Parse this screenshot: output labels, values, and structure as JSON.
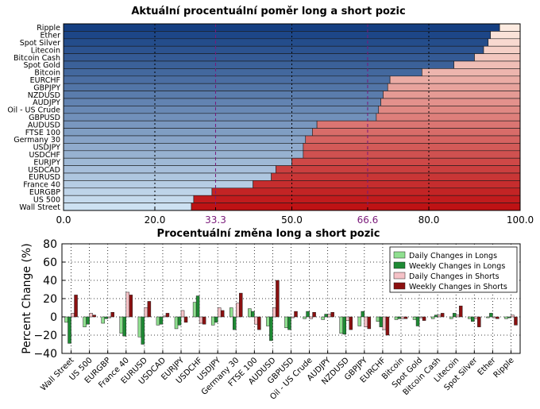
{
  "chart_data": [
    {
      "type": "bar",
      "orientation": "horizontal",
      "stacked": true,
      "title": "Aktuální procentuální poměr long a short pozic",
      "categories": [
        "Ripple",
        "Ether",
        "Spot Silver",
        "Litecoin",
        "Bitcoin Cash",
        "Spot Gold",
        "Bitcoin",
        "EURCHF",
        "GBPJPY",
        "NZDUSD",
        "AUDJPY",
        "Oil - US Crude",
        "GBPUSD",
        "AUDUSD",
        "FTSE 100",
        "Germany 30",
        "USDJPY",
        "USDCHF",
        "EURJPY",
        "USDCAD",
        "EURUSD",
        "France 40",
        "EURGBP",
        "US 500",
        "Wall Street"
      ],
      "series": [
        {
          "role": "long",
          "values": [
            95.5,
            93.5,
            93,
            92,
            90,
            85.5,
            78.5,
            71.5,
            71,
            70,
            69.5,
            69,
            68.5,
            55.5,
            54.5,
            53,
            52.5,
            52.5,
            50,
            46.5,
            45.5,
            41.5,
            32.5,
            28.5,
            28
          ]
        },
        {
          "role": "short",
          "values": [
            4.5,
            6.5,
            7,
            8,
            10,
            14.5,
            21.5,
            28.5,
            29,
            30,
            30.5,
            31,
            31.5,
            44.5,
            45.5,
            47,
            47.5,
            47.5,
            50,
            53.5,
            54.5,
            58.5,
            67.5,
            71.5,
            72
          ]
        }
      ],
      "xlim": [
        0,
        100
      ],
      "xticks": [
        "0.0",
        "20.0",
        "33.3",
        "50.0",
        "66.6",
        "80.0",
        "100.0"
      ],
      "reference_lines": [
        33.3,
        50,
        66.6
      ],
      "grid": true
    },
    {
      "type": "bar",
      "title": "Procentuální změna long a short pozic",
      "ylabel": "Percent Change (%)",
      "ylim": [
        -40,
        80
      ],
      "yticks": [
        "80",
        "60",
        "40",
        "20",
        "0",
        "−20",
        "−40"
      ],
      "categories": [
        "Wall Street",
        "US 500",
        "EURGBP",
        "France 40",
        "EURUSD",
        "USDCAD",
        "EURJPY",
        "USDCHF",
        "USDJPY",
        "Germany 30",
        "FTSE 100",
        "AUDUSD",
        "GBPUSD",
        "Oil - US Crude",
        "AUDJPY",
        "NZDUSD",
        "GBPJPY",
        "EURCHF",
        "Bitcoin",
        "Spot Gold",
        "Bitcoin Cash",
        "Litecoin",
        "Spot Silver",
        "Ether",
        "Ripple"
      ],
      "series": [
        {
          "name": "Daily Changes in Longs",
          "values": [
            -6,
            -11,
            -7,
            -18,
            -22,
            -9,
            -13,
            16,
            -9,
            10,
            9,
            -10,
            -12,
            -2,
            -3,
            -18,
            -10,
            -5,
            -3,
            -3,
            -2,
            -2,
            -2,
            -1,
            -2
          ]
        },
        {
          "name": "Weekly Changes in Longs",
          "values": [
            -29,
            -8,
            -2,
            -21,
            -30,
            -8,
            -9,
            23,
            -6,
            -14,
            6,
            -26,
            -14,
            6,
            3,
            -19,
            6,
            -11,
            -2,
            -10,
            2,
            4,
            -5,
            4,
            -1
          ]
        },
        {
          "name": "Daily Changes in Shorts",
          "values": [
            4,
            4,
            -1,
            27,
            10,
            1,
            7,
            -7,
            10,
            15,
            -8,
            10,
            -1,
            -2,
            3,
            -4,
            -11,
            -14,
            -2,
            -1,
            2,
            2,
            -2,
            -1,
            2
          ]
        },
        {
          "name": "Weekly Changes in Shorts",
          "values": [
            24,
            2,
            5,
            24,
            17,
            4,
            -6,
            -8,
            7,
            26,
            -14,
            40,
            6,
            5,
            5,
            -14,
            -13,
            -20,
            -2,
            -4,
            4,
            12,
            -11,
            -2,
            -9
          ]
        }
      ],
      "colors": {
        "daily_longs": "#8fdf8f",
        "weekly_longs": "#1e8a34",
        "daily_shorts": "#f5c2c7",
        "weekly_shorts": "#8b1010"
      },
      "legend_position": "top-right",
      "grid": true
    }
  ]
}
